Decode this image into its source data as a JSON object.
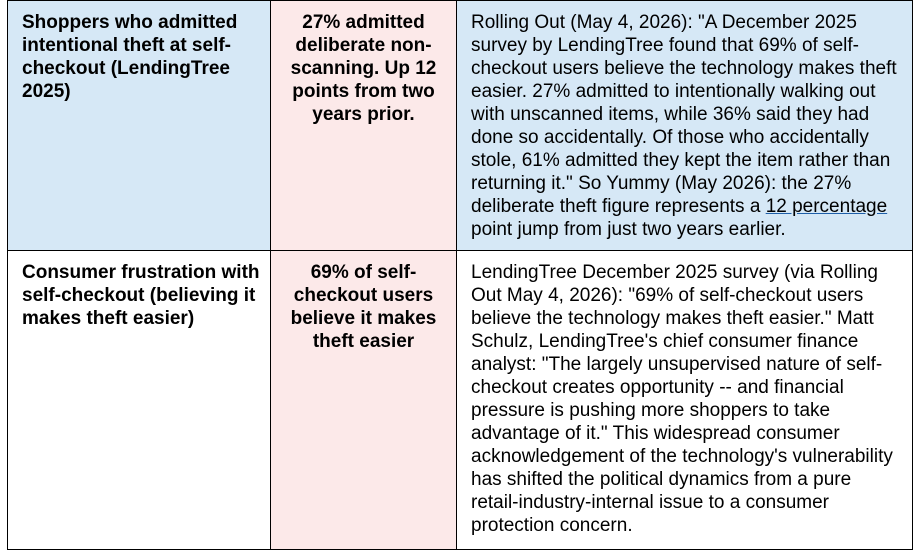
{
  "table": {
    "rows": [
      {
        "label": "Shoppers who admitted intentional theft at self-checkout (LendingTree 2025)",
        "figure": "27% admitted deliberate non-scanning. Up 12 points from two years prior.",
        "source_before": "Rolling Out (May 4, 2026): \"A December 2025 survey by LendingTree found that 69% of self-checkout users believe the technology makes theft easier. 27% admitted to intentionally walking out with unscanned items, while 36% said they had done so accidentally. Of those who accidentally stole, 61% admitted they kept the item rather than returning it.\" So Yummy (May 2026): the 27% deliberate theft figure represents a ",
        "source_link": "12 percentage",
        "source_after": " point jump from just two years earlier."
      },
      {
        "label": "Consumer frustration with self-checkout (believing it makes theft easier)",
        "figure": "69% of self-checkout users believe it makes theft easier",
        "source": "LendingTree December 2025 survey (via Rolling Out May 4, 2026): \"69% of self-checkout users believe the technology makes theft easier.\" Matt Schulz, LendingTree's chief consumer finance analyst: \"The largely unsupervised nature of self-checkout creates opportunity -- and financial pressure is pushing more shoppers to take advantage of it.\" This widespread consumer acknowledgement of the technology's vulnerability has shifted the political dynamics from a pure retail-industry-internal issue to a consumer protection concern."
      }
    ]
  }
}
